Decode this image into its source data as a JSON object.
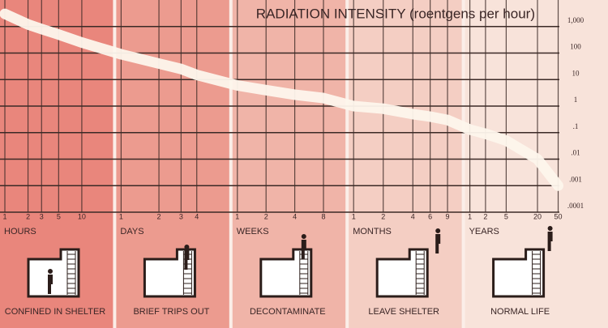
{
  "chart_data": {
    "type": "line",
    "title": "RADIATION INTENSITY (roentgens per hour)",
    "log_scale": true,
    "grid": true,
    "curve_color": "#fdf6ec",
    "ylim": [
      0.0001,
      10000
    ],
    "yticks": [
      {
        "value": 1000,
        "label": "1,000"
      },
      100,
      10,
      1,
      {
        "value": 0.1,
        "label": ".1"
      },
      {
        "value": 0.01,
        "label": ".01"
      },
      {
        "value": 0.001,
        "label": ".001"
      },
      {
        "value": 0.0001,
        "label": ".0001"
      }
    ],
    "panels": [
      {
        "unit": "HOURS",
        "caption": "CONFINED IN SHELTER",
        "color": "#e9867c",
        "xlim": [
          1,
          24
        ],
        "xticks": [
          1,
          2,
          3,
          5,
          10
        ],
        "values": [
          3000,
          1200,
          800,
          500,
          250
        ]
      },
      {
        "unit": "DAYS",
        "caption": "BRIEF TRIPS OUT",
        "color": "#ec9b8f",
        "xlim": [
          1,
          7
        ],
        "xticks": [
          1,
          2,
          3,
          4
        ],
        "values": [
          90,
          40,
          25,
          15
        ]
      },
      {
        "unit": "WEEKS",
        "caption": "DECONTAMINATE",
        "color": "#f0b4a8",
        "xlim": [
          1,
          13
        ],
        "xticks": [
          1,
          2,
          4,
          8
        ],
        "values": [
          6,
          4,
          2.7,
          2
        ]
      },
      {
        "unit": "MONTHS",
        "caption": "LEAVE SHELTER",
        "color": "#f4cec3",
        "xlim": [
          1,
          12
        ],
        "xticks": [
          1,
          2,
          4,
          6,
          9
        ],
        "values": [
          1,
          0.8,
          0.5,
          0.4,
          0.3
        ]
      },
      {
        "unit": "YEARS",
        "caption": "NORMAL LIFE",
        "color": "#f8e3da",
        "xlim": [
          1,
          60
        ],
        "xticks": [
          1,
          2,
          5,
          20,
          50
        ],
        "values": [
          0.13,
          0.09,
          0.05,
          0.01,
          0.001
        ]
      }
    ]
  }
}
